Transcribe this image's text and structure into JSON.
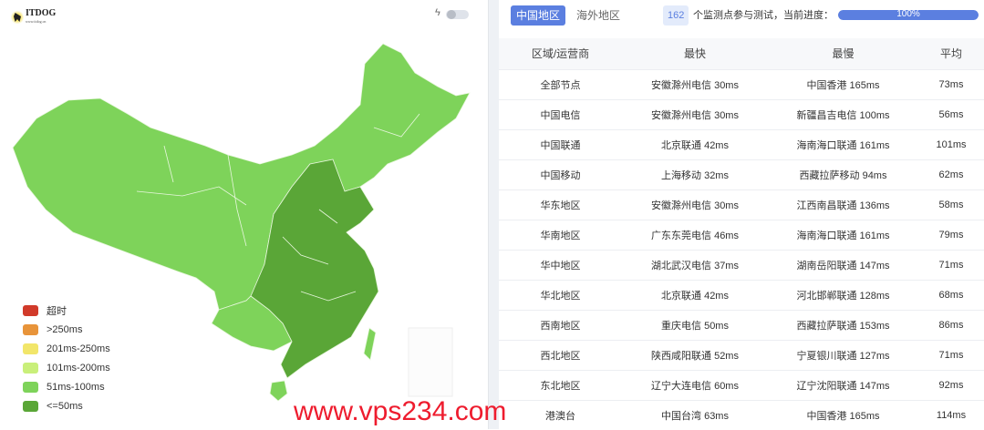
{
  "logo": {
    "text": "ITDOG",
    "sub": "www.itdog.cn"
  },
  "toolbar": {
    "bolt_icon": "lightning-icon",
    "toggle_on": false
  },
  "legend": [
    {
      "label": "超时",
      "color": "#d13a2a"
    },
    {
      "label": ">250ms",
      "color": "#e8943a"
    },
    {
      "label": "201ms-250ms",
      "color": "#f2e66a"
    },
    {
      "label": "101ms-200ms",
      "color": "#c9ef7a"
    },
    {
      "label": "51ms-100ms",
      "color": "#7ed35a"
    },
    {
      "label": "<=50ms",
      "color": "#5aa637"
    }
  ],
  "tabs": [
    {
      "label": "中国地区",
      "active": true
    },
    {
      "label": "海外地区",
      "active": false
    }
  ],
  "status": {
    "count": "162",
    "text": "个监测点参与测试，当前进度：",
    "progress_percent": 100,
    "progress_label": "100%"
  },
  "table": {
    "headers": [
      "区域/运营商",
      "最快",
      "最慢",
      "平均"
    ],
    "rows": [
      [
        "全部节点",
        "安徽滁州电信 30ms",
        "中国香港 165ms",
        "73ms"
      ],
      [
        "中国电信",
        "安徽滁州电信 30ms",
        "新疆昌吉电信 100ms",
        "56ms"
      ],
      [
        "中国联通",
        "北京联通 42ms",
        "海南海口联通 161ms",
        "101ms"
      ],
      [
        "中国移动",
        "上海移动 32ms",
        "西藏拉萨移动 94ms",
        "62ms"
      ],
      [
        "华东地区",
        "安徽滁州电信 30ms",
        "江西南昌联通 136ms",
        "58ms"
      ],
      [
        "华南地区",
        "广东东莞电信 46ms",
        "海南海口联通 161ms",
        "79ms"
      ],
      [
        "华中地区",
        "湖北武汉电信 37ms",
        "湖南岳阳联通 147ms",
        "71ms"
      ],
      [
        "华北地区",
        "北京联通 42ms",
        "河北邯郸联通 128ms",
        "68ms"
      ],
      [
        "西南地区",
        "重庆电信 50ms",
        "西藏拉萨联通 153ms",
        "86ms"
      ],
      [
        "西北地区",
        "陕西咸阳联通 52ms",
        "宁夏银川联通 127ms",
        "71ms"
      ],
      [
        "东北地区",
        "辽宁大连电信 60ms",
        "辽宁沈阳联通 147ms",
        "92ms"
      ],
      [
        "港澳台",
        "中国台湾 63ms",
        "中国香港 165ms",
        "114ms"
      ]
    ]
  },
  "watermark": "www.vps234.com"
}
